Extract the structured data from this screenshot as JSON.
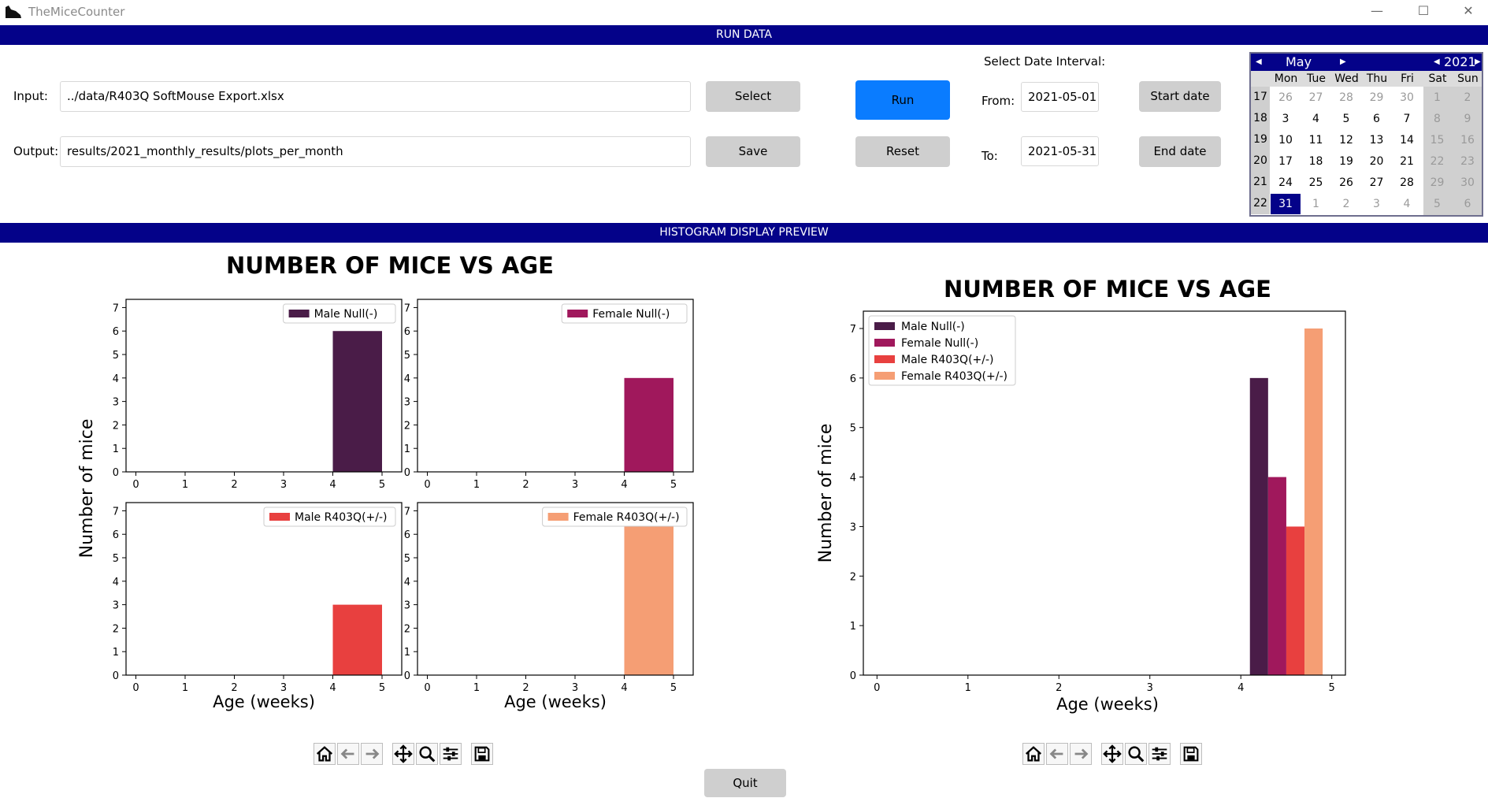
{
  "window": {
    "title": "TheMiceCounter"
  },
  "sections": {
    "run_data": "RUN DATA",
    "histogram_preview": "HISTOGRAM DISPLAY PREVIEW"
  },
  "form": {
    "input_label": "Input:",
    "input_value": "../data/R403Q SoftMouse Export.xlsx",
    "output_label": "Output:",
    "output_value": "results/2021_monthly_results/plots_per_month",
    "select_button": "Select",
    "save_button": "Save",
    "run_button": "Run",
    "reset_button": "Reset",
    "date_interval_label": "Select Date Interval:",
    "from_label": "From:",
    "from_value": "2021-05-01",
    "to_label": "To:",
    "to_value": "2021-05-31",
    "start_date_button": "Start date",
    "end_date_button": "End date",
    "quit_button": "Quit"
  },
  "calendar": {
    "month": "May",
    "year": "2021",
    "weekdays": [
      "Mon",
      "Tue",
      "Wed",
      "Thu",
      "Fri",
      "Sat",
      "Sun"
    ],
    "weeks": [
      {
        "num": "17",
        "days": [
          "26",
          "27",
          "28",
          "29",
          "30",
          "1",
          "2"
        ]
      },
      {
        "num": "18",
        "days": [
          "3",
          "4",
          "5",
          "6",
          "7",
          "8",
          "9"
        ]
      },
      {
        "num": "19",
        "days": [
          "10",
          "11",
          "12",
          "13",
          "14",
          "15",
          "16"
        ]
      },
      {
        "num": "20",
        "days": [
          "17",
          "18",
          "19",
          "20",
          "21",
          "22",
          "23"
        ]
      },
      {
        "num": "21",
        "days": [
          "24",
          "25",
          "26",
          "27",
          "28",
          "29",
          "30"
        ]
      },
      {
        "num": "22",
        "days": [
          "31",
          "1",
          "2",
          "3",
          "4",
          "5",
          "6"
        ]
      }
    ],
    "selected": "31"
  },
  "toolbar_icons": [
    "home-icon",
    "back-icon",
    "forward-icon",
    "pan-icon",
    "zoom-icon",
    "configure-icon",
    "save-icon"
  ],
  "colors": {
    "male_null": "#4a1c48",
    "female_null": "#a0185c",
    "male_r403q": "#e8403f",
    "female_r403q": "#f59e74",
    "header_bar": "#040289",
    "run_button": "#0a7cff"
  },
  "chart_data": [
    {
      "type": "bar",
      "title": "NUMBER OF MICE VS AGE",
      "layout": "2x2 subplots",
      "xlabel": "Age (weeks)",
      "ylabel": "Number of mice",
      "xticks": [
        "0",
        "1",
        "2",
        "3",
        "4",
        "5"
      ],
      "yticks": [
        "0",
        "1",
        "2",
        "3",
        "4",
        "5",
        "6",
        "7"
      ],
      "xlim": [
        -0.2,
        5.4
      ],
      "ylim": [
        0,
        7.35
      ],
      "subplots": [
        {
          "legend": "Male Null(-)",
          "bins": [
            [
              4,
              5
            ]
          ],
          "values": [
            6
          ]
        },
        {
          "legend": "Female Null(-)",
          "bins": [
            [
              4,
              5
            ]
          ],
          "values": [
            4
          ]
        },
        {
          "legend": "Male R403Q(+/-)",
          "bins": [
            [
              4,
              5
            ]
          ],
          "values": [
            3
          ]
        },
        {
          "legend": "Female R403Q(+/-)",
          "bins": [
            [
              4,
              5
            ]
          ],
          "values": [
            7
          ]
        }
      ]
    },
    {
      "type": "bar",
      "title": "NUMBER OF MICE VS AGE",
      "xlabel": "Age (weeks)",
      "ylabel": "Number of mice",
      "xticks": [
        "0",
        "1",
        "2",
        "3",
        "4",
        "5"
      ],
      "yticks": [
        "0",
        "1",
        "2",
        "3",
        "4",
        "5",
        "6",
        "7"
      ],
      "xlim": [
        -0.15,
        5.15
      ],
      "ylim": [
        0,
        7.35
      ],
      "legend_position": "top-left",
      "series": [
        {
          "name": "Male Null(-)",
          "x_range": [
            4.1,
            4.3
          ],
          "value": 6
        },
        {
          "name": "Female Null(-)",
          "x_range": [
            4.3,
            4.5
          ],
          "value": 4
        },
        {
          "name": "Male R403Q(+/-)",
          "x_range": [
            4.5,
            4.7
          ],
          "value": 3
        },
        {
          "name": "Female R403Q(+/-)",
          "x_range": [
            4.7,
            4.9
          ],
          "value": 7
        }
      ]
    }
  ]
}
